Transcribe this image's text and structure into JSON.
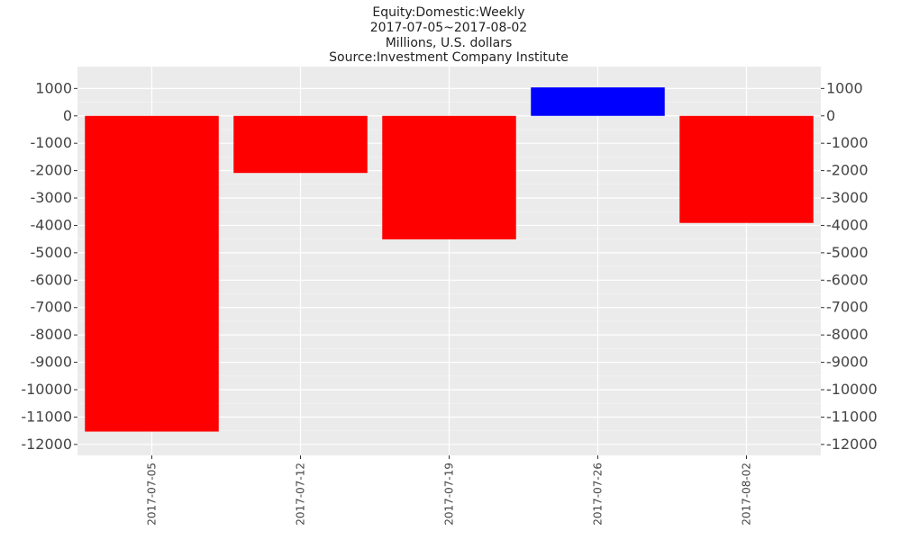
{
  "titles": [
    "Equity:Domestic:Weekly",
    "2017-07-05~2017-08-02",
    "Millions, U.S. dollars",
    "Source:Investment Company Institute"
  ],
  "colors": {
    "panel_background": "#ebebeb",
    "grid_major": "#ffffff",
    "grid_minor": "#f5f5f5",
    "positive_bar": "#0000ff",
    "negative_bar": "#ff0000",
    "tick_text": "#444444"
  },
  "chart_data": {
    "type": "bar",
    "title": "Equity:Domestic:Weekly",
    "subtitle": [
      "2017-07-05~2017-08-02",
      "Millions, U.S. dollars",
      "Source:Investment Company Institute"
    ],
    "categories": [
      "2017-07-05",
      "2017-07-12",
      "2017-07-19",
      "2017-07-26",
      "2017-08-02"
    ],
    "values": [
      -11530,
      -2085,
      -4510,
      1040,
      -3910
    ],
    "ylim": [
      -12400,
      1800
    ],
    "yticks": [
      1000,
      0,
      -1000,
      -2000,
      -3000,
      -4000,
      -5000,
      -6000,
      -7000,
      -8000,
      -9000,
      -10000,
      -11000,
      -12000
    ],
    "ytick_labels": [
      "1000",
      "0",
      "-1000",
      "-2000",
      "-3000",
      "-4000",
      "-5000",
      "-6000",
      "-7000",
      "-8000",
      "-9000",
      "-10000",
      "-11000",
      "-12000"
    ],
    "y_axis_both_sides": true,
    "grid": true,
    "legend": "none",
    "xlabel": "",
    "ylabel": ""
  }
}
